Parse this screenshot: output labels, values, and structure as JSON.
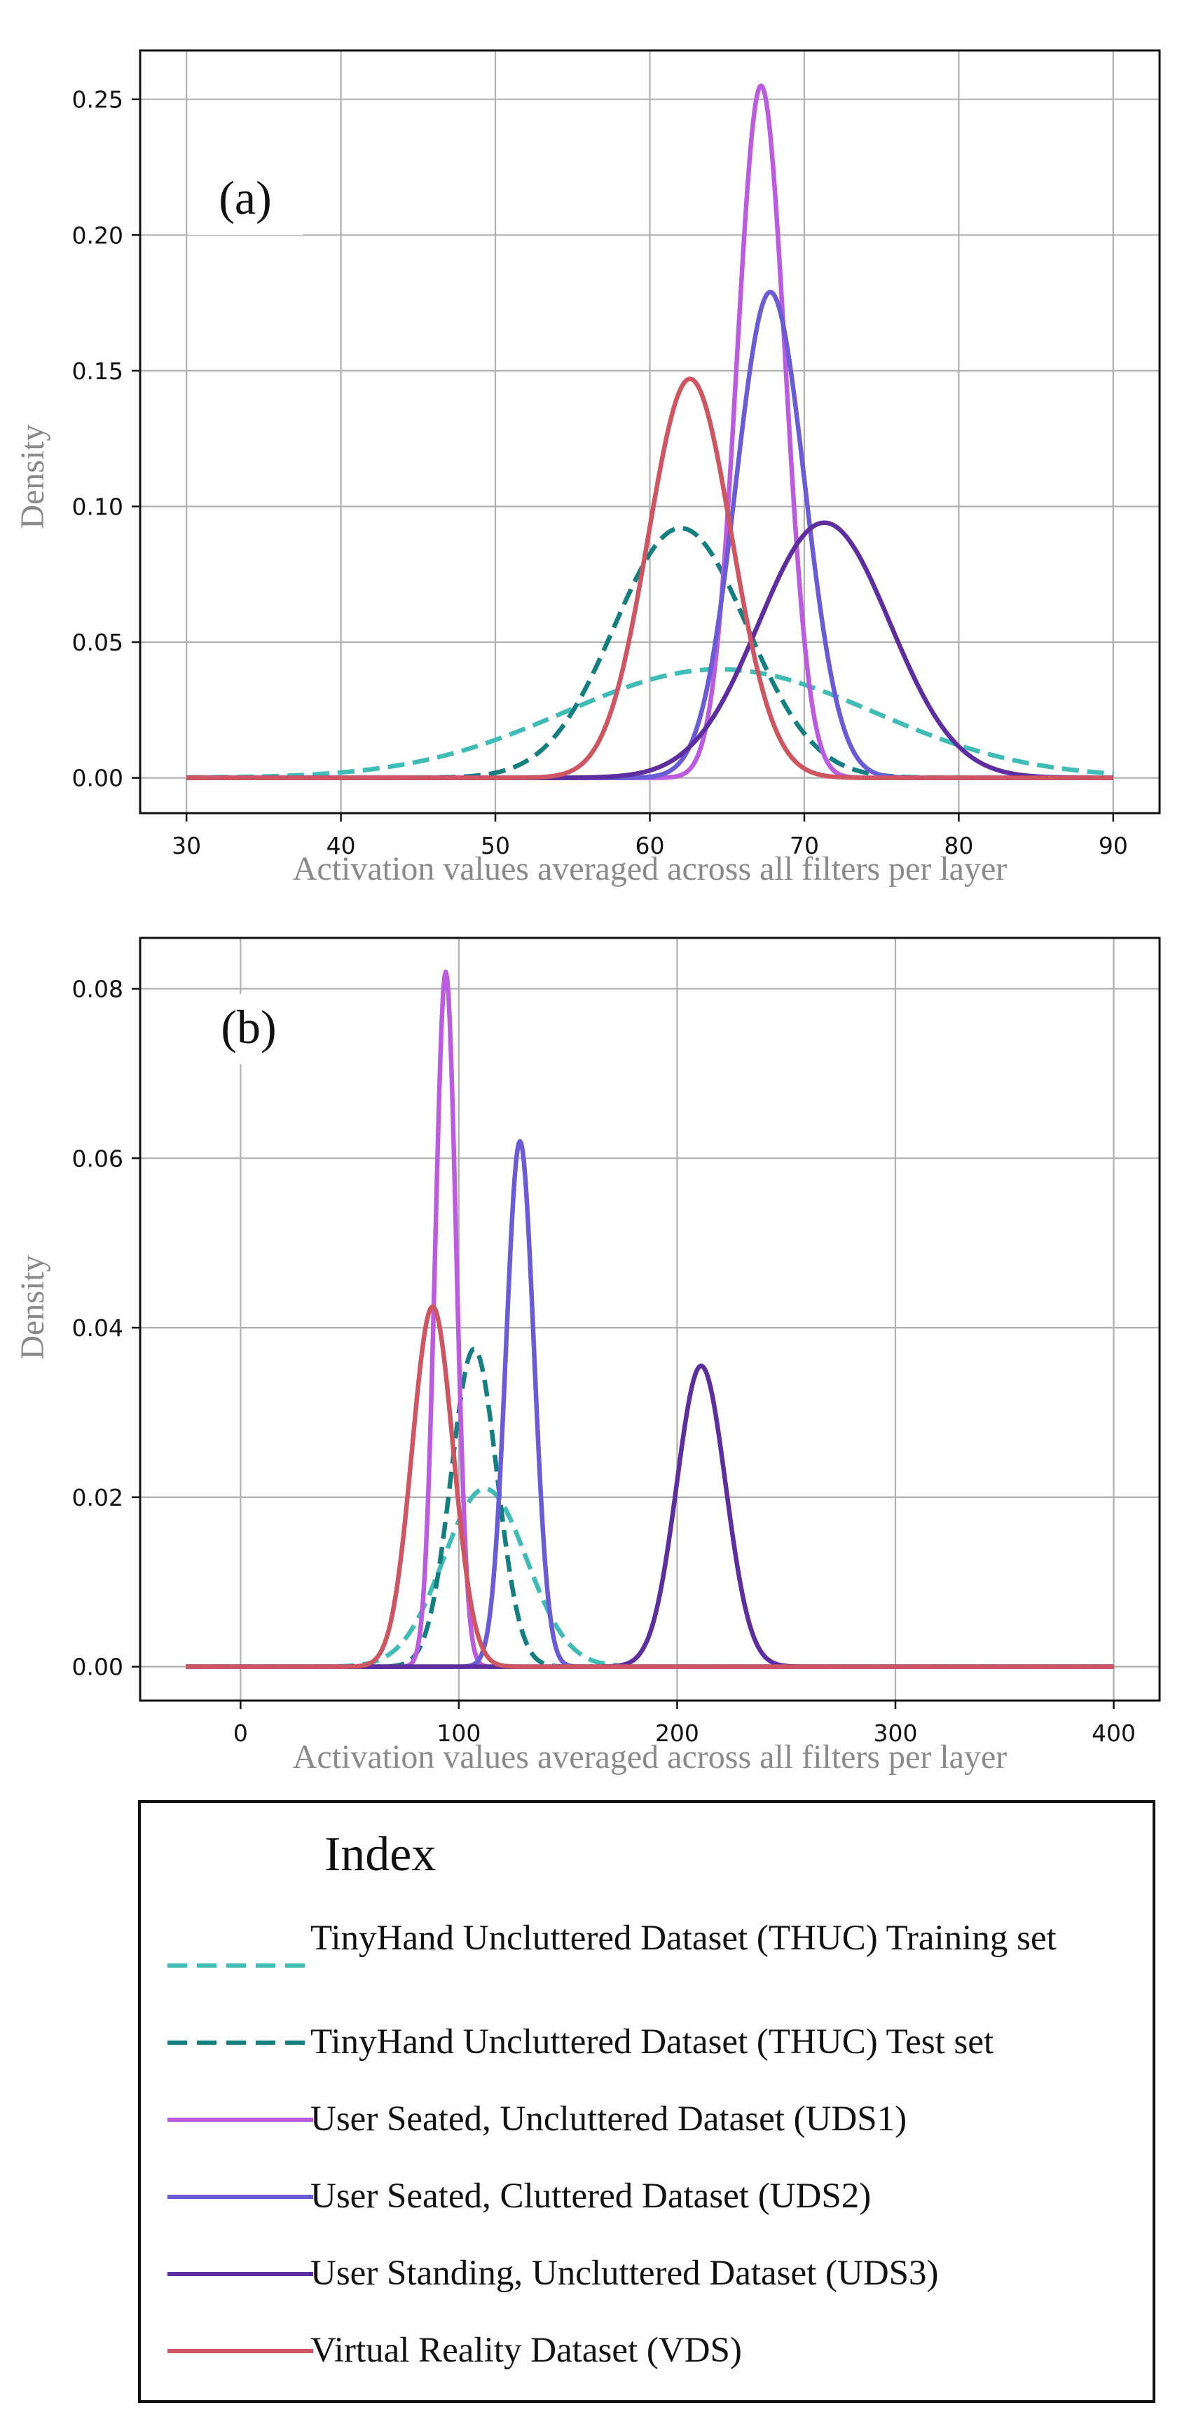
{
  "chart_data": [
    {
      "type": "line",
      "panel_label": "(a)",
      "xlabel": "Activation values averaged across all filters per layer",
      "ylabel": "Density",
      "xlim": [
        27,
        93
      ],
      "ylim": [
        -0.013,
        0.268
      ],
      "xticks": [
        30,
        40,
        50,
        60,
        70,
        80,
        90
      ],
      "xtick_labels": [
        "30",
        "40",
        "50",
        "60",
        "70",
        "80",
        "90"
      ],
      "yticks": [
        0.0,
        0.05,
        0.1,
        0.15,
        0.2,
        0.25
      ],
      "ytick_labels": [
        "0.00",
        "0.05",
        "0.10",
        "0.15",
        "0.20",
        "0.25"
      ],
      "x_range": [
        30,
        90
      ],
      "grid": true,
      "series": [
        {
          "key": "thuc_train",
          "name": "TinyHand Uncluttered Dataset (THUC) Training set",
          "mean": 64.5,
          "std": 10.0,
          "peak": 0.04
        },
        {
          "key": "thuc_test",
          "name": "TinyHand Uncluttered Dataset (THUC) Test set",
          "mean": 62.0,
          "std": 4.3,
          "peak": 0.092
        },
        {
          "key": "uds1",
          "name": "User Seated, Uncluttered Dataset (UDS1)",
          "mean": 67.2,
          "std": 1.56,
          "peak": 0.255
        },
        {
          "key": "uds2",
          "name": "User Seated, Cluttered Dataset (UDS2)",
          "mean": 67.8,
          "std": 2.23,
          "peak": 0.179
        },
        {
          "key": "uds3",
          "name": "User Standing, Uncluttered Dataset (UDS3)",
          "mean": 71.3,
          "std": 4.25,
          "peak": 0.094
        },
        {
          "key": "vds",
          "name": "Virtual Reality Dataset (VDS)",
          "mean": 62.6,
          "std": 2.7,
          "peak": 0.147
        }
      ]
    },
    {
      "type": "line",
      "panel_label": "(b)",
      "xlabel": "Activation values averaged across all filters per layer",
      "ylabel": "Density",
      "xlim": [
        -46,
        421
      ],
      "ylim": [
        -0.004,
        0.086
      ],
      "xticks": [
        0,
        100,
        200,
        300,
        400
      ],
      "xtick_labels": [
        "0",
        "100",
        "200",
        "300",
        "400"
      ],
      "yticks": [
        0.0,
        0.02,
        0.04,
        0.06,
        0.08
      ],
      "ytick_labels": [
        "0.00",
        "0.02",
        "0.04",
        "0.06",
        "0.08"
      ],
      "x_range": [
        -25,
        400
      ],
      "grid": true,
      "series": [
        {
          "key": "thuc_train",
          "name": "TinyHand Uncluttered Dataset (THUC) Training set",
          "mean": 112.0,
          "std": 19.0,
          "peak": 0.021
        },
        {
          "key": "thuc_test",
          "name": "TinyHand Uncluttered Dataset (THUC) Test set",
          "mean": 107.0,
          "std": 10.5,
          "peak": 0.0375
        },
        {
          "key": "uds1",
          "name": "User Seated, Uncluttered Dataset (UDS1)",
          "mean": 94.0,
          "std": 4.8,
          "peak": 0.082
        },
        {
          "key": "uds2",
          "name": "User Seated, Cluttered Dataset (UDS2)",
          "mean": 128.0,
          "std": 6.4,
          "peak": 0.062
        },
        {
          "key": "uds3",
          "name": "User Standing, Uncluttered Dataset (UDS3)",
          "mean": 211.0,
          "std": 11.2,
          "peak": 0.0355
        },
        {
          "key": "vds",
          "name": "Virtual Reality Dataset (VDS)",
          "mean": 88.0,
          "std": 9.4,
          "peak": 0.0425
        }
      ]
    }
  ],
  "styles": {
    "thuc_train": {
      "color": "#3fbcb6",
      "dashed": true
    },
    "thuc_test": {
      "color": "#137f80",
      "dashed": true
    },
    "uds1": {
      "color": "#bc5be0",
      "dashed": false
    },
    "uds2": {
      "color": "#6a5bd6",
      "dashed": false
    },
    "uds3": {
      "color": "#5e2ea0",
      "dashed": false
    },
    "vds": {
      "color": "#cf5660",
      "dashed": false
    }
  },
  "legend": {
    "title": "Index",
    "items": [
      {
        "key": "thuc_train",
        "label": "TinyHand Uncluttered Dataset (THUC) Training set"
      },
      {
        "key": "thuc_test",
        "label": "TinyHand Uncluttered Dataset (THUC) Test set"
      },
      {
        "key": "uds1",
        "label": "User Seated, Uncluttered Dataset (UDS1)"
      },
      {
        "key": "uds2",
        "label": "User Seated, Cluttered Dataset (UDS2)"
      },
      {
        "key": "uds3",
        "label": "User Standing, Uncluttered Dataset (UDS3)"
      },
      {
        "key": "vds",
        "label": "Virtual Reality Dataset (VDS)"
      }
    ]
  }
}
